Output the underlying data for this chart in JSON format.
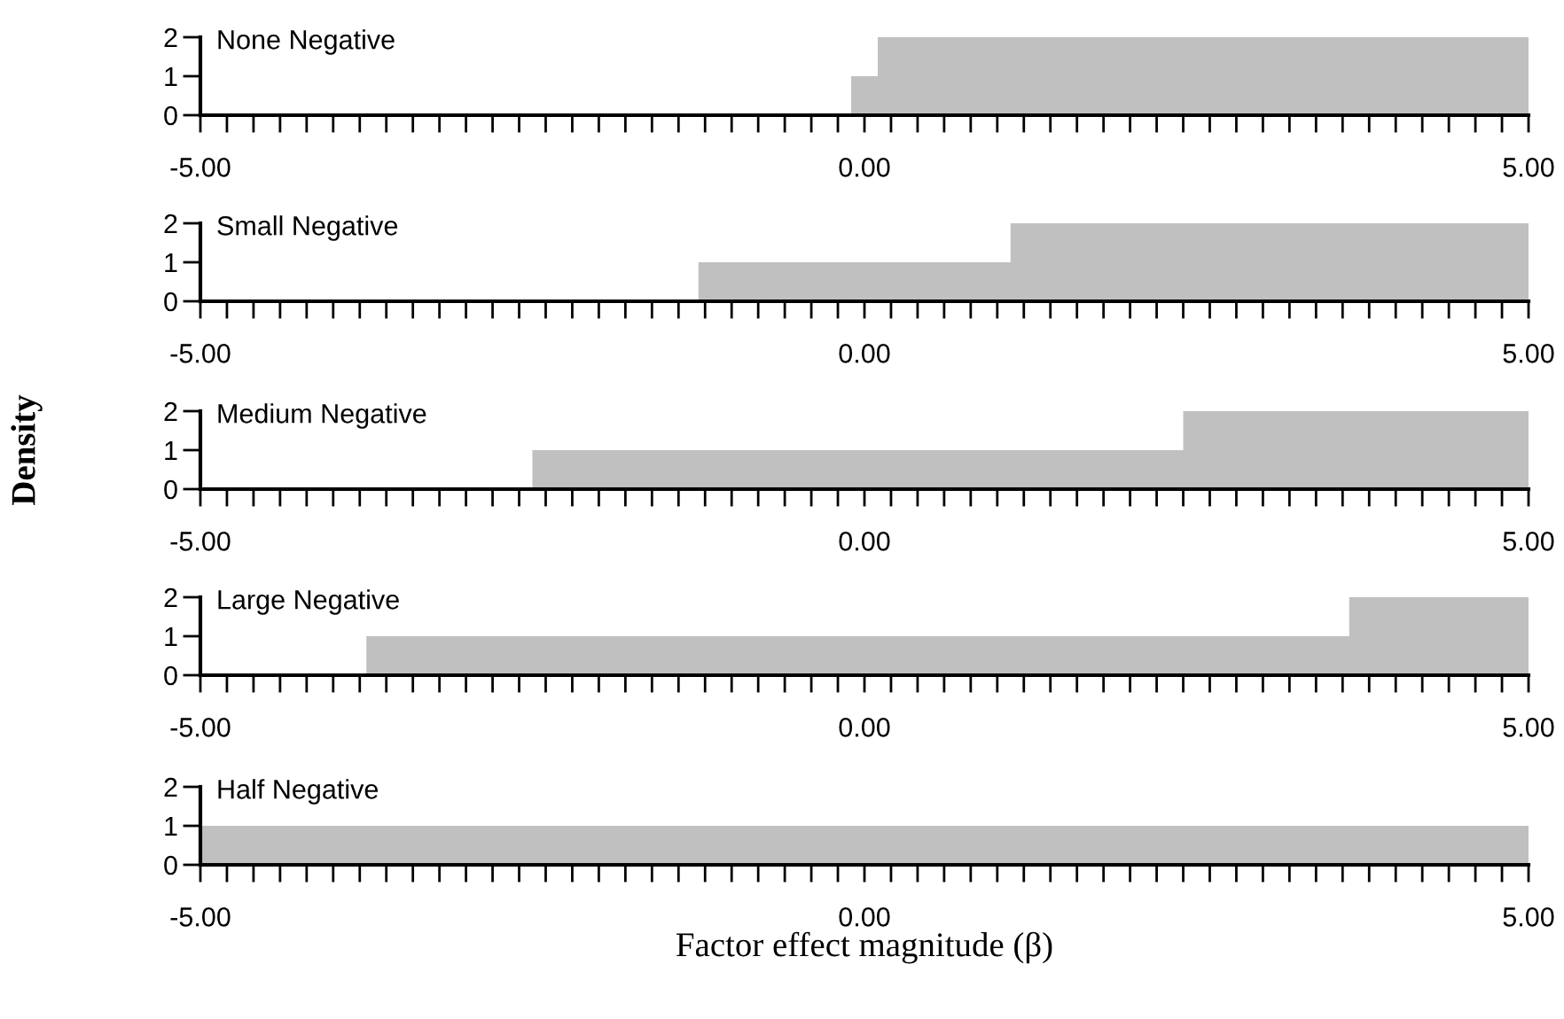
{
  "chart_data": [
    {
      "type": "histogram",
      "title": "None Negative",
      "bins": [
        -5,
        -0.1,
        0.1,
        5
      ],
      "values": [
        0,
        1,
        2
      ],
      "color": "#c0c0c0",
      "xlim": [
        -5,
        5
      ],
      "ylim": [
        0,
        2
      ],
      "yticks": [
        0,
        1,
        2
      ],
      "xticks": [
        {
          "value": -5,
          "label": "-5.00"
        },
        {
          "value": -4.8,
          "label": null
        },
        {
          "value": -4.6,
          "label": null
        },
        {
          "value": -4.4,
          "label": null
        },
        {
          "value": -4.2,
          "label": null
        },
        {
          "value": -4,
          "label": null
        },
        {
          "value": -3.8,
          "label": null
        },
        {
          "value": -3.6,
          "label": null
        },
        {
          "value": -3.4,
          "label": null
        },
        {
          "value": -3.2,
          "label": null
        },
        {
          "value": -3,
          "label": null
        },
        {
          "value": -2.8,
          "label": null
        },
        {
          "value": -2.6,
          "label": null
        },
        {
          "value": -2.4,
          "label": null
        },
        {
          "value": -2.2,
          "label": null
        },
        {
          "value": -2,
          "label": null
        },
        {
          "value": -1.8,
          "label": null
        },
        {
          "value": -1.6,
          "label": null
        },
        {
          "value": -1.4,
          "label": null
        },
        {
          "value": -1.2,
          "label": null
        },
        {
          "value": -1,
          "label": null
        },
        {
          "value": -0.8,
          "label": null
        },
        {
          "value": -0.6,
          "label": null
        },
        {
          "value": -0.4,
          "label": null
        },
        {
          "value": -0.2,
          "label": null
        },
        {
          "value": 0,
          "label": "0.00"
        },
        {
          "value": 0.2,
          "label": null
        },
        {
          "value": 0.4,
          "label": null
        },
        {
          "value": 0.6,
          "label": null
        },
        {
          "value": 0.8,
          "label": null
        },
        {
          "value": 1,
          "label": null
        },
        {
          "value": 1.2,
          "label": null
        },
        {
          "value": 1.4,
          "label": null
        },
        {
          "value": 1.6,
          "label": null
        },
        {
          "value": 1.8,
          "label": null
        },
        {
          "value": 2,
          "label": null
        },
        {
          "value": 2.2,
          "label": null
        },
        {
          "value": 2.4,
          "label": null
        },
        {
          "value": 2.6,
          "label": null
        },
        {
          "value": 2.8,
          "label": null
        },
        {
          "value": 3,
          "label": null
        },
        {
          "value": 3.2,
          "label": null
        },
        {
          "value": 3.4,
          "label": null
        },
        {
          "value": 3.6,
          "label": null
        },
        {
          "value": 3.8,
          "label": null
        },
        {
          "value": 4,
          "label": null
        },
        {
          "value": 4.2,
          "label": null
        },
        {
          "value": 4.4,
          "label": null
        },
        {
          "value": 4.6,
          "label": null
        },
        {
          "value": 4.8,
          "label": null
        },
        {
          "value": 5,
          "label": "5.00"
        }
      ],
      "grid": false
    },
    {
      "type": "histogram",
      "title": "Small Negative",
      "bins": [
        -5,
        -1.25,
        1.1,
        5
      ],
      "values": [
        0,
        1,
        2
      ],
      "color": "#c0c0c0",
      "xlim": [
        -5,
        5
      ],
      "ylim": [
        0,
        2
      ],
      "yticks": [
        0,
        1,
        2
      ],
      "xticks": [
        {
          "value": -5,
          "label": "-5.00"
        },
        {
          "value": -4.8,
          "label": null
        },
        {
          "value": -4.6,
          "label": null
        },
        {
          "value": -4.4,
          "label": null
        },
        {
          "value": -4.2,
          "label": null
        },
        {
          "value": -4,
          "label": null
        },
        {
          "value": -3.8,
          "label": null
        },
        {
          "value": -3.6,
          "label": null
        },
        {
          "value": -3.4,
          "label": null
        },
        {
          "value": -3.2,
          "label": null
        },
        {
          "value": -3,
          "label": null
        },
        {
          "value": -2.8,
          "label": null
        },
        {
          "value": -2.6,
          "label": null
        },
        {
          "value": -2.4,
          "label": null
        },
        {
          "value": -2.2,
          "label": null
        },
        {
          "value": -2,
          "label": null
        },
        {
          "value": -1.8,
          "label": null
        },
        {
          "value": -1.6,
          "label": null
        },
        {
          "value": -1.4,
          "label": null
        },
        {
          "value": -1.2,
          "label": null
        },
        {
          "value": -1,
          "label": null
        },
        {
          "value": -0.8,
          "label": null
        },
        {
          "value": -0.6,
          "label": null
        },
        {
          "value": -0.4,
          "label": null
        },
        {
          "value": -0.2,
          "label": null
        },
        {
          "value": 0,
          "label": "0.00"
        },
        {
          "value": 0.2,
          "label": null
        },
        {
          "value": 0.4,
          "label": null
        },
        {
          "value": 0.6,
          "label": null
        },
        {
          "value": 0.8,
          "label": null
        },
        {
          "value": 1,
          "label": null
        },
        {
          "value": 1.2,
          "label": null
        },
        {
          "value": 1.4,
          "label": null
        },
        {
          "value": 1.6,
          "label": null
        },
        {
          "value": 1.8,
          "label": null
        },
        {
          "value": 2,
          "label": null
        },
        {
          "value": 2.2,
          "label": null
        },
        {
          "value": 2.4,
          "label": null
        },
        {
          "value": 2.6,
          "label": null
        },
        {
          "value": 2.8,
          "label": null
        },
        {
          "value": 3,
          "label": null
        },
        {
          "value": 3.2,
          "label": null
        },
        {
          "value": 3.4,
          "label": null
        },
        {
          "value": 3.6,
          "label": null
        },
        {
          "value": 3.8,
          "label": null
        },
        {
          "value": 4,
          "label": null
        },
        {
          "value": 4.2,
          "label": null
        },
        {
          "value": 4.4,
          "label": null
        },
        {
          "value": 4.6,
          "label": null
        },
        {
          "value": 4.8,
          "label": null
        },
        {
          "value": 5,
          "label": "5.00"
        }
      ],
      "grid": false
    },
    {
      "type": "histogram",
      "title": "Medium Negative",
      "ylabel": "Density",
      "bins": [
        -5,
        -2.5,
        2.4,
        5
      ],
      "values": [
        0,
        1,
        2
      ],
      "color": "#c0c0c0",
      "xlim": [
        -5,
        5
      ],
      "ylim": [
        0,
        2
      ],
      "yticks": [
        0,
        1,
        2
      ],
      "xticks": [
        {
          "value": -5,
          "label": "-5.00"
        },
        {
          "value": -4.8,
          "label": null
        },
        {
          "value": -4.6,
          "label": null
        },
        {
          "value": -4.4,
          "label": null
        },
        {
          "value": -4.2,
          "label": null
        },
        {
          "value": -4,
          "label": null
        },
        {
          "value": -3.8,
          "label": null
        },
        {
          "value": -3.6,
          "label": null
        },
        {
          "value": -3.4,
          "label": null
        },
        {
          "value": -3.2,
          "label": null
        },
        {
          "value": -3,
          "label": null
        },
        {
          "value": -2.8,
          "label": null
        },
        {
          "value": -2.6,
          "label": null
        },
        {
          "value": -2.4,
          "label": null
        },
        {
          "value": -2.2,
          "label": null
        },
        {
          "value": -2,
          "label": null
        },
        {
          "value": -1.8,
          "label": null
        },
        {
          "value": -1.6,
          "label": null
        },
        {
          "value": -1.4,
          "label": null
        },
        {
          "value": -1.2,
          "label": null
        },
        {
          "value": -1,
          "label": null
        },
        {
          "value": -0.8,
          "label": null
        },
        {
          "value": -0.6,
          "label": null
        },
        {
          "value": -0.4,
          "label": null
        },
        {
          "value": -0.2,
          "label": null
        },
        {
          "value": 0,
          "label": "0.00"
        },
        {
          "value": 0.2,
          "label": null
        },
        {
          "value": 0.4,
          "label": null
        },
        {
          "value": 0.6,
          "label": null
        },
        {
          "value": 0.8,
          "label": null
        },
        {
          "value": 1,
          "label": null
        },
        {
          "value": 1.2,
          "label": null
        },
        {
          "value": 1.4,
          "label": null
        },
        {
          "value": 1.6,
          "label": null
        },
        {
          "value": 1.8,
          "label": null
        },
        {
          "value": 2,
          "label": null
        },
        {
          "value": 2.2,
          "label": null
        },
        {
          "value": 2.4,
          "label": null
        },
        {
          "value": 2.6,
          "label": null
        },
        {
          "value": 2.8,
          "label": null
        },
        {
          "value": 3,
          "label": null
        },
        {
          "value": 3.2,
          "label": null
        },
        {
          "value": 3.4,
          "label": null
        },
        {
          "value": 3.6,
          "label": null
        },
        {
          "value": 3.8,
          "label": null
        },
        {
          "value": 4,
          "label": null
        },
        {
          "value": 4.2,
          "label": null
        },
        {
          "value": 4.4,
          "label": null
        },
        {
          "value": 4.6,
          "label": null
        },
        {
          "value": 4.8,
          "label": null
        },
        {
          "value": 5,
          "label": "5.00"
        }
      ],
      "grid": false
    },
    {
      "type": "histogram",
      "title": "Large Negative",
      "bins": [
        -5,
        -3.75,
        3.65,
        5
      ],
      "values": [
        0,
        1,
        2
      ],
      "color": "#c0c0c0",
      "xlim": [
        -5,
        5
      ],
      "ylim": [
        0,
        2
      ],
      "yticks": [
        0,
        1,
        2
      ],
      "xticks": [
        {
          "value": -5,
          "label": "-5.00"
        },
        {
          "value": -4.8,
          "label": null
        },
        {
          "value": -4.6,
          "label": null
        },
        {
          "value": -4.4,
          "label": null
        },
        {
          "value": -4.2,
          "label": null
        },
        {
          "value": -4,
          "label": null
        },
        {
          "value": -3.8,
          "label": null
        },
        {
          "value": -3.6,
          "label": null
        },
        {
          "value": -3.4,
          "label": null
        },
        {
          "value": -3.2,
          "label": null
        },
        {
          "value": -3,
          "label": null
        },
        {
          "value": -2.8,
          "label": null
        },
        {
          "value": -2.6,
          "label": null
        },
        {
          "value": -2.4,
          "label": null
        },
        {
          "value": -2.2,
          "label": null
        },
        {
          "value": -2,
          "label": null
        },
        {
          "value": -1.8,
          "label": null
        },
        {
          "value": -1.6,
          "label": null
        },
        {
          "value": -1.4,
          "label": null
        },
        {
          "value": -1.2,
          "label": null
        },
        {
          "value": -1,
          "label": null
        },
        {
          "value": -0.8,
          "label": null
        },
        {
          "value": -0.6,
          "label": null
        },
        {
          "value": -0.4,
          "label": null
        },
        {
          "value": -0.2,
          "label": null
        },
        {
          "value": 0,
          "label": "0.00"
        },
        {
          "value": 0.2,
          "label": null
        },
        {
          "value": 0.4,
          "label": null
        },
        {
          "value": 0.6,
          "label": null
        },
        {
          "value": 0.8,
          "label": null
        },
        {
          "value": 1,
          "label": null
        },
        {
          "value": 1.2,
          "label": null
        },
        {
          "value": 1.4,
          "label": null
        },
        {
          "value": 1.6,
          "label": null
        },
        {
          "value": 1.8,
          "label": null
        },
        {
          "value": 2,
          "label": null
        },
        {
          "value": 2.2,
          "label": null
        },
        {
          "value": 2.4,
          "label": null
        },
        {
          "value": 2.6,
          "label": null
        },
        {
          "value": 2.8,
          "label": null
        },
        {
          "value": 3,
          "label": null
        },
        {
          "value": 3.2,
          "label": null
        },
        {
          "value": 3.4,
          "label": null
        },
        {
          "value": 3.6,
          "label": null
        },
        {
          "value": 3.8,
          "label": null
        },
        {
          "value": 4,
          "label": null
        },
        {
          "value": 4.2,
          "label": null
        },
        {
          "value": 4.4,
          "label": null
        },
        {
          "value": 4.6,
          "label": null
        },
        {
          "value": 4.8,
          "label": null
        },
        {
          "value": 5,
          "label": "5.00"
        }
      ],
      "grid": false
    },
    {
      "type": "histogram",
      "title": "Half Negative",
      "xlabel": "Factor effect magnitude (β)",
      "bins": [
        -5,
        5
      ],
      "values": [
        1
      ],
      "color": "#c0c0c0",
      "xlim": [
        -5,
        5
      ],
      "ylim": [
        0,
        2
      ],
      "yticks": [
        0,
        1,
        2
      ],
      "xticks": [
        {
          "value": -5,
          "label": "-5.00"
        },
        {
          "value": -4.8,
          "label": null
        },
        {
          "value": -4.6,
          "label": null
        },
        {
          "value": -4.4,
          "label": null
        },
        {
          "value": -4.2,
          "label": null
        },
        {
          "value": -4,
          "label": null
        },
        {
          "value": -3.8,
          "label": null
        },
        {
          "value": -3.6,
          "label": null
        },
        {
          "value": -3.4,
          "label": null
        },
        {
          "value": -3.2,
          "label": null
        },
        {
          "value": -3,
          "label": null
        },
        {
          "value": -2.8,
          "label": null
        },
        {
          "value": -2.6,
          "label": null
        },
        {
          "value": -2.4,
          "label": null
        },
        {
          "value": -2.2,
          "label": null
        },
        {
          "value": -2,
          "label": null
        },
        {
          "value": -1.8,
          "label": null
        },
        {
          "value": -1.6,
          "label": null
        },
        {
          "value": -1.4,
          "label": null
        },
        {
          "value": -1.2,
          "label": null
        },
        {
          "value": -1,
          "label": null
        },
        {
          "value": -0.8,
          "label": null
        },
        {
          "value": -0.6,
          "label": null
        },
        {
          "value": -0.4,
          "label": null
        },
        {
          "value": -0.2,
          "label": null
        },
        {
          "value": 0,
          "label": "0.00"
        },
        {
          "value": 0.2,
          "label": null
        },
        {
          "value": 0.4,
          "label": null
        },
        {
          "value": 0.6,
          "label": null
        },
        {
          "value": 0.8,
          "label": null
        },
        {
          "value": 1,
          "label": null
        },
        {
          "value": 1.2,
          "label": null
        },
        {
          "value": 1.4,
          "label": null
        },
        {
          "value": 1.6,
          "label": null
        },
        {
          "value": 1.8,
          "label": null
        },
        {
          "value": 2,
          "label": null
        },
        {
          "value": 2.2,
          "label": null
        },
        {
          "value": 2.4,
          "label": null
        },
        {
          "value": 2.6,
          "label": null
        },
        {
          "value": 2.8,
          "label": null
        },
        {
          "value": 3,
          "label": null
        },
        {
          "value": 3.2,
          "label": null
        },
        {
          "value": 3.4,
          "label": null
        },
        {
          "value": 3.6,
          "label": null
        },
        {
          "value": 3.8,
          "label": null
        },
        {
          "value": 4,
          "label": null
        },
        {
          "value": 4.2,
          "label": null
        },
        {
          "value": 4.4,
          "label": null
        },
        {
          "value": 4.6,
          "label": null
        },
        {
          "value": 4.8,
          "label": null
        },
        {
          "value": 5,
          "label": "5.00"
        }
      ],
      "grid": false
    }
  ]
}
